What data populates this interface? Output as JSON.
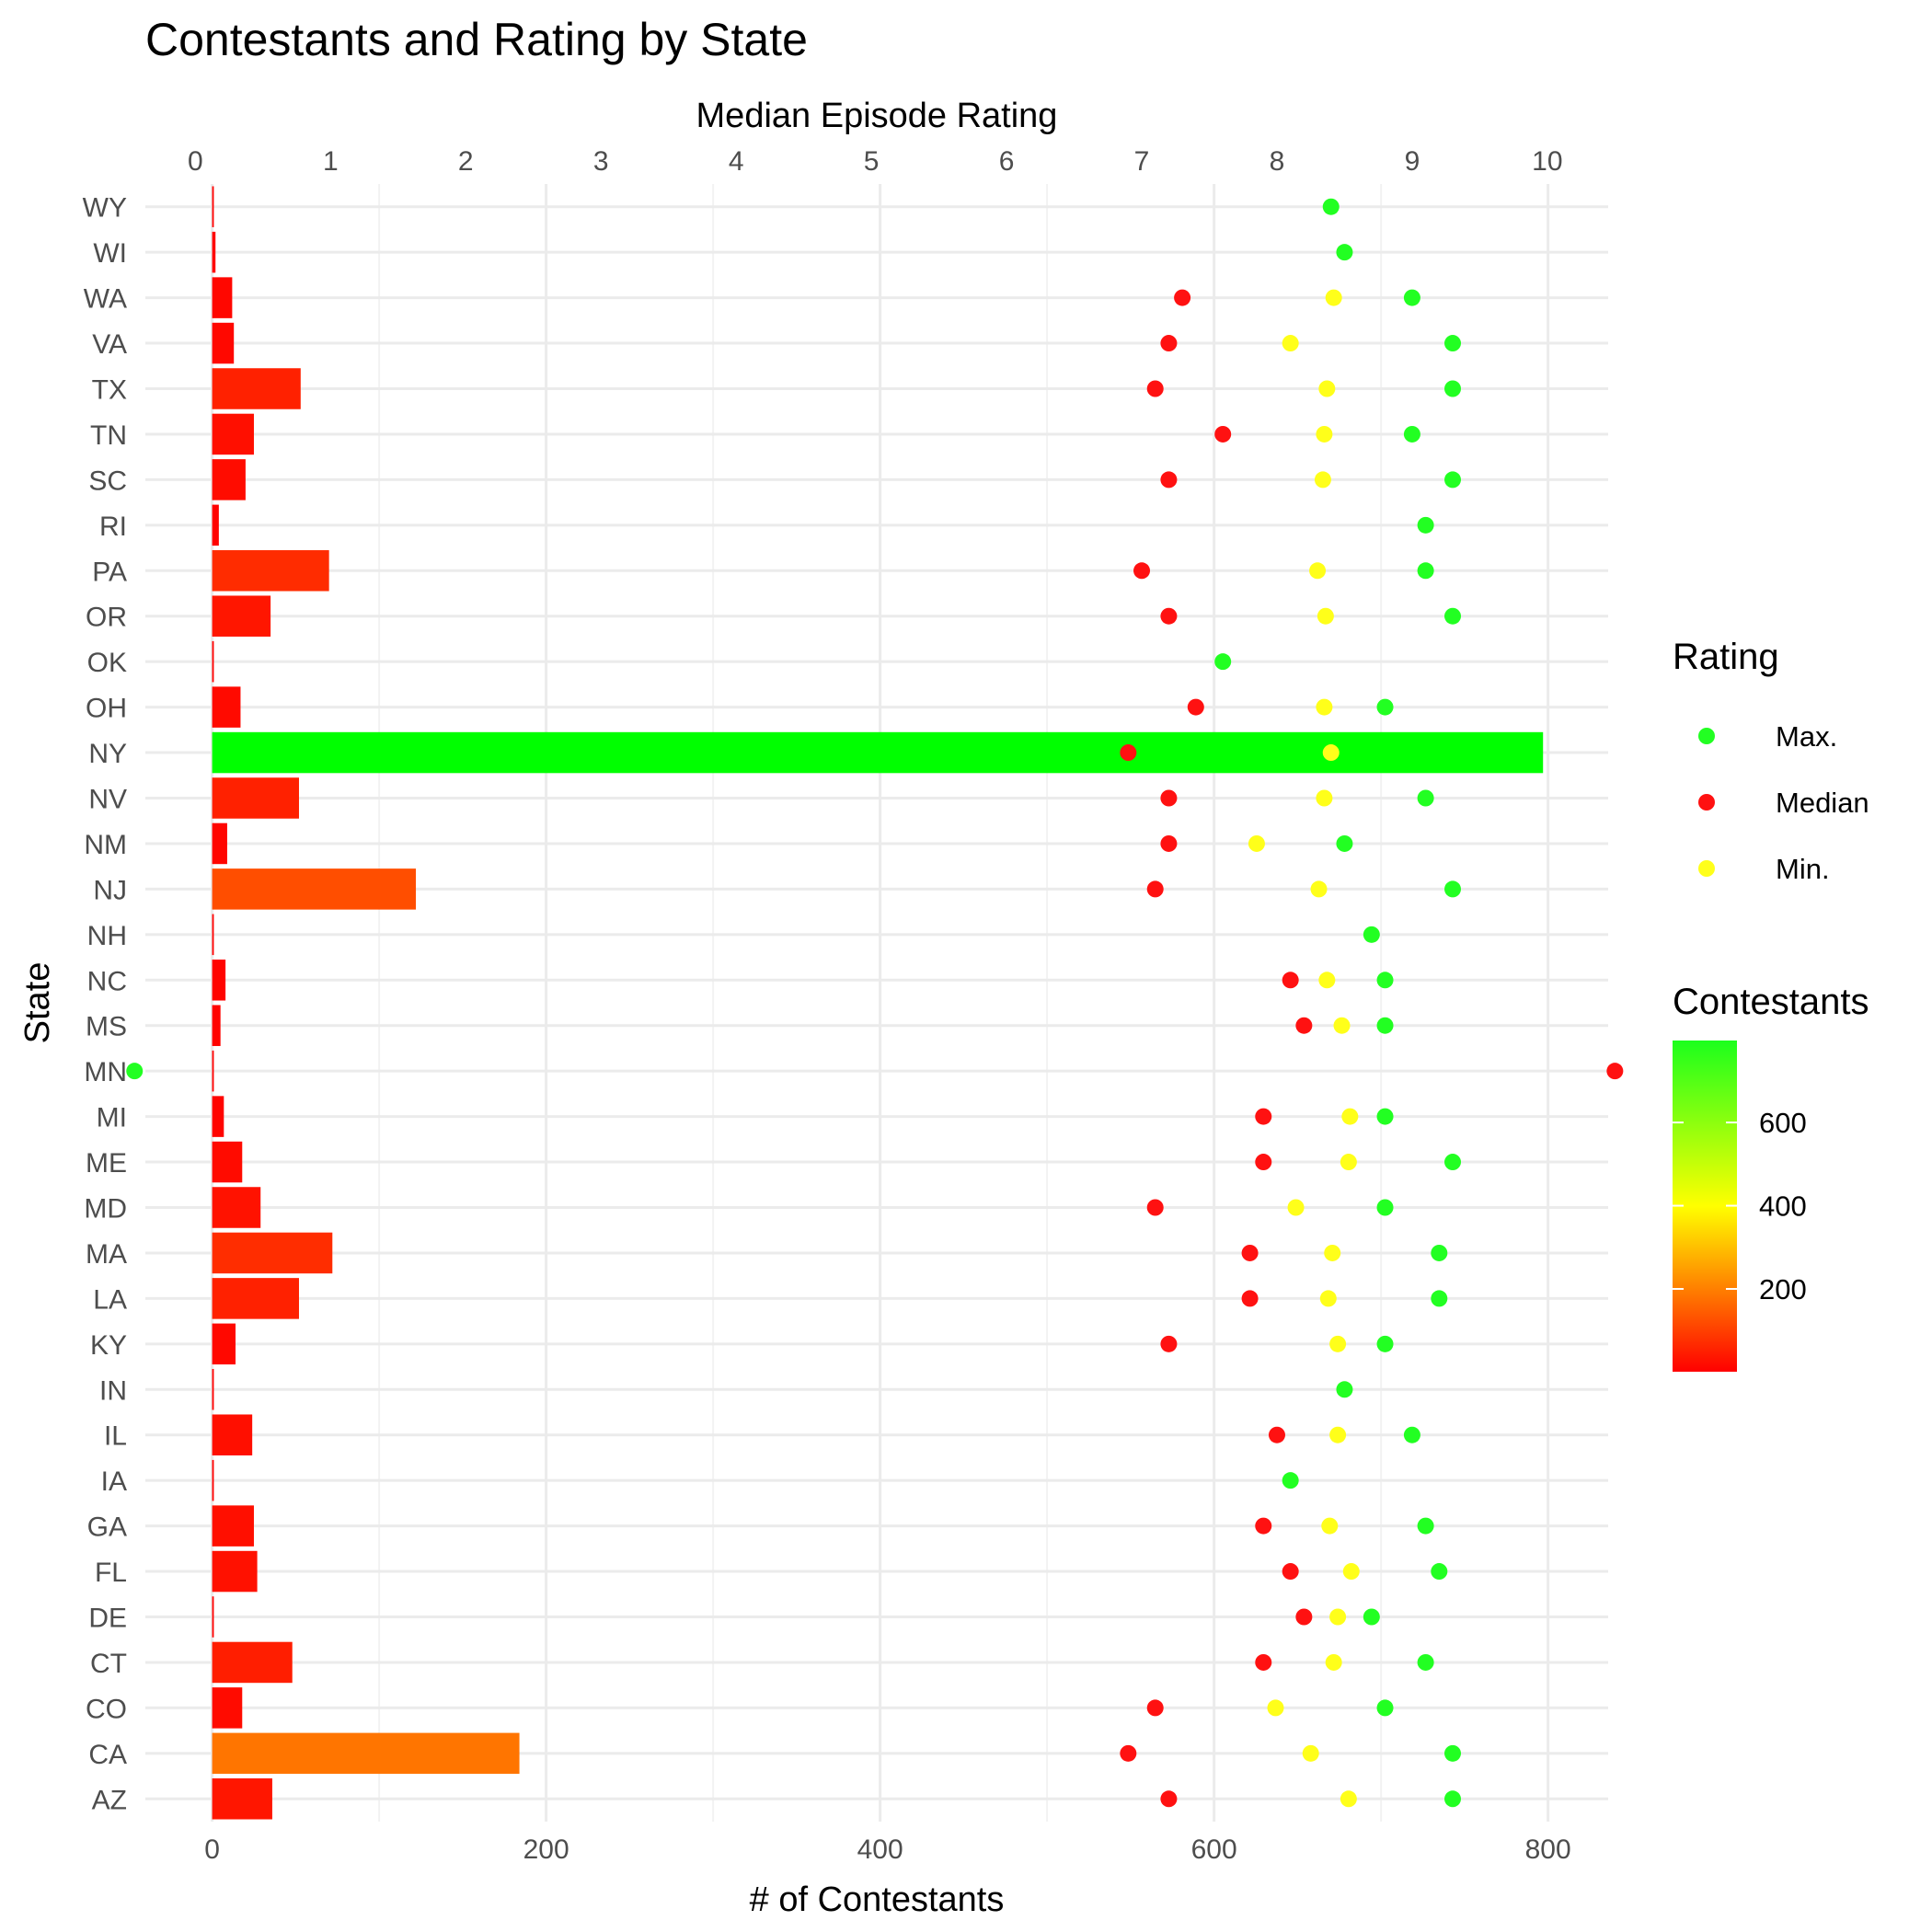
{
  "chart_data": {
    "type": "bar",
    "title": "Contestants and Rating by State",
    "xlabel": "# of Contestants",
    "x2label": "Median Episode Rating",
    "ylabel": "State",
    "xlim": [
      -40,
      836
    ],
    "x2lim": [
      -0.37,
      10.45
    ],
    "xticks": [
      0,
      200,
      400,
      600,
      800
    ],
    "x2ticks": [
      0,
      1,
      2,
      3,
      4,
      5,
      6,
      7,
      8,
      9,
      10
    ],
    "grid": true,
    "categories": [
      "WY",
      "WI",
      "WA",
      "VA",
      "TX",
      "TN",
      "SC",
      "RI",
      "PA",
      "OR",
      "OK",
      "OH",
      "NY",
      "NV",
      "NM",
      "NJ",
      "NH",
      "NC",
      "MS",
      "MN",
      "MI",
      "ME",
      "MD",
      "MA",
      "LA",
      "KY",
      "IN",
      "IL",
      "IA",
      "GA",
      "FL",
      "DE",
      "CT",
      "CO",
      "CA",
      "AZ"
    ],
    "series": [
      {
        "name": "Contestants",
        "axis": "bottom",
        "values": [
          1,
          2,
          12,
          13,
          53,
          25,
          20,
          4,
          70,
          35,
          1,
          17,
          797,
          52,
          9,
          122,
          1,
          8,
          5,
          1,
          7,
          18,
          29,
          72,
          52,
          14,
          1,
          24,
          1,
          25,
          27,
          1,
          48,
          18,
          184,
          36
        ]
      },
      {
        "name": "Max.",
        "axis": "top",
        "values": [
          8.4,
          8.5,
          9.0,
          9.3,
          9.3,
          9.0,
          9.3,
          9.1,
          9.1,
          9.3,
          7.6,
          8.8,
          null,
          9.1,
          8.5,
          9.3,
          8.7,
          8.8,
          8.8,
          -0.45,
          8.8,
          9.3,
          8.8,
          9.2,
          9.2,
          8.8,
          8.5,
          9.0,
          8.1,
          9.1,
          9.2,
          8.7,
          9.1,
          8.8,
          9.3,
          9.3
        ]
      },
      {
        "name": "Median",
        "axis": "top",
        "values": [
          null,
          null,
          7.3,
          7.2,
          7.1,
          7.6,
          7.2,
          null,
          7.0,
          7.2,
          null,
          7.4,
          6.9,
          7.2,
          7.2,
          7.1,
          null,
          8.1,
          8.2,
          10.5,
          7.9,
          7.9,
          7.1,
          7.8,
          7.8,
          7.2,
          null,
          8.0,
          null,
          7.9,
          8.1,
          8.2,
          7.9,
          7.1,
          6.9,
          7.2
        ]
      },
      {
        "name": "Min.",
        "axis": "top",
        "values": [
          null,
          null,
          8.42,
          8.1,
          8.37,
          8.35,
          8.34,
          null,
          8.3,
          8.36,
          null,
          8.35,
          8.4,
          8.35,
          7.85,
          8.31,
          null,
          8.37,
          8.48,
          null,
          8.54,
          8.53,
          8.14,
          8.41,
          8.38,
          8.45,
          null,
          8.45,
          null,
          8.39,
          8.55,
          8.45,
          8.42,
          7.99,
          8.25,
          8.53
        ]
      }
    ],
    "rating_colors": {
      "Max.": "#22ff22",
      "Median": "#ff1111",
      "Min.": "#ffff1a"
    },
    "color_scale": {
      "title": "Contestants",
      "stops": [
        "#ff0000",
        "#ffff00",
        "#00ff00"
      ],
      "domain": [
        1,
        797
      ],
      "ticks": [
        200,
        400,
        600
      ]
    },
    "legend": {
      "title": "Rating",
      "items": [
        "Max.",
        "Median",
        "Min."
      ],
      "placement": "right"
    }
  }
}
